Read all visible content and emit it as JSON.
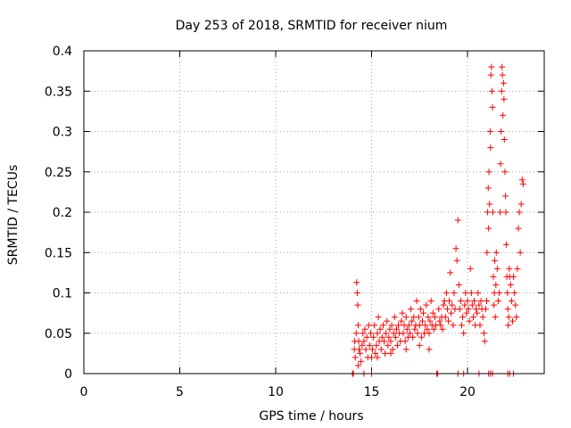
{
  "colors": {
    "series": "#ff0000",
    "grid": "#a0a0a0",
    "axis": "#000000"
  },
  "chart_data": {
    "type": "scatter",
    "title": "Day 253 of 2018, SRMTID for receiver nium",
    "xlabel": "GPS time / hours",
    "ylabel": "SRMTID / TECUs",
    "xlim": [
      0,
      24
    ],
    "ylim": [
      0,
      0.4
    ],
    "xticks": [
      0,
      5,
      10,
      15,
      20
    ],
    "xtick_labels": [
      "0",
      "5",
      "10",
      "15",
      "20"
    ],
    "yticks": [
      0,
      0.05,
      0.1,
      0.15,
      0.2,
      0.25,
      0.3,
      0.35,
      0.4
    ],
    "ytick_labels": [
      "0",
      "0.05",
      "0.1",
      "0.15",
      "0.2",
      "0.25",
      "0.3",
      "0.35",
      "0.4"
    ],
    "grid": true,
    "marker": "+",
    "series": [
      {
        "name": "SRMTID",
        "points": [
          [
            14.0,
            0.0
          ],
          [
            14.05,
            0.0
          ],
          [
            14.1,
            0.03
          ],
          [
            14.12,
            0.04
          ],
          [
            14.15,
            0.02
          ],
          [
            14.2,
            0.05
          ],
          [
            14.22,
            0.113
          ],
          [
            14.25,
            0.1
          ],
          [
            14.28,
            0.085
          ],
          [
            14.3,
            0.06
          ],
          [
            14.33,
            0.04
          ],
          [
            14.35,
            0.03
          ],
          [
            14.4,
            0.025
          ],
          [
            14.45,
            0.015
          ],
          [
            14.5,
            0.035
          ],
          [
            14.55,
            0.05
          ],
          [
            14.6,
            0.04
          ],
          [
            14.65,
            0.055
          ],
          [
            14.7,
            0.03
          ],
          [
            14.75,
            0.045
          ],
          [
            14.8,
            0.02
          ],
          [
            14.85,
            0.06
          ],
          [
            14.9,
            0.035
          ],
          [
            14.95,
            0.05
          ],
          [
            15.0,
            0.02
          ],
          [
            15.0,
            0.0
          ],
          [
            15.05,
            0.03
          ],
          [
            15.1,
            0.045
          ],
          [
            15.15,
            0.06
          ],
          [
            15.2,
            0.025
          ],
          [
            15.25,
            0.035
          ],
          [
            15.3,
            0.05
          ],
          [
            15.35,
            0.07
          ],
          [
            15.4,
            0.04
          ],
          [
            15.45,
            0.055
          ],
          [
            15.5,
            0.03
          ],
          [
            15.55,
            0.045
          ],
          [
            15.6,
            0.06
          ],
          [
            15.65,
            0.04
          ],
          [
            15.7,
            0.025
          ],
          [
            15.75,
            0.05
          ],
          [
            15.8,
            0.065
          ],
          [
            15.85,
            0.035
          ],
          [
            15.9,
            0.045
          ],
          [
            15.95,
            0.055
          ],
          [
            16.0,
            0.04
          ],
          [
            16.05,
            0.06
          ],
          [
            16.1,
            0.03
          ],
          [
            16.15,
            0.05
          ],
          [
            16.2,
            0.07
          ],
          [
            16.25,
            0.045
          ],
          [
            16.3,
            0.055
          ],
          [
            16.35,
            0.035
          ],
          [
            16.4,
            0.06
          ],
          [
            16.45,
            0.05
          ],
          [
            16.5,
            0.04
          ],
          [
            16.55,
            0.065
          ],
          [
            16.6,
            0.075
          ],
          [
            16.65,
            0.05
          ],
          [
            16.7,
            0.06
          ],
          [
            16.75,
            0.04
          ],
          [
            16.8,
            0.07
          ],
          [
            16.85,
            0.055
          ],
          [
            16.9,
            0.045
          ],
          [
            16.95,
            0.06
          ],
          [
            17.0,
            0.05
          ],
          [
            17.05,
            0.08
          ],
          [
            17.1,
            0.065
          ],
          [
            17.15,
            0.045
          ],
          [
            17.2,
            0.07
          ],
          [
            17.25,
            0.055
          ],
          [
            17.3,
            0.06
          ],
          [
            17.35,
            0.09
          ],
          [
            17.4,
            0.05
          ],
          [
            17.45,
            0.07
          ],
          [
            17.5,
            0.06
          ],
          [
            17.55,
            0.08
          ],
          [
            17.6,
            0.045
          ],
          [
            17.65,
            0.065
          ],
          [
            17.7,
            0.075
          ],
          [
            17.75,
            0.05
          ],
          [
            17.8,
            0.06
          ],
          [
            17.85,
            0.085
          ],
          [
            17.9,
            0.055
          ],
          [
            17.95,
            0.07
          ],
          [
            18.0,
            0.05
          ],
          [
            18.05,
            0.065
          ],
          [
            18.1,
            0.09
          ],
          [
            18.15,
            0.06
          ],
          [
            18.2,
            0.075
          ],
          [
            18.25,
            0.055
          ],
          [
            18.3,
            0.07
          ],
          [
            18.35,
            0.06
          ],
          [
            18.4,
            0.0
          ],
          [
            18.45,
            0.0
          ],
          [
            18.5,
            0.08
          ],
          [
            18.55,
            0.065
          ],
          [
            18.6,
            0.06
          ],
          [
            18.65,
            0.07
          ],
          [
            18.7,
            0.055
          ],
          [
            18.75,
            0.085
          ],
          [
            18.8,
            0.09
          ],
          [
            18.85,
            0.07
          ],
          [
            18.9,
            0.1
          ],
          [
            18.95,
            0.08
          ],
          [
            19.0,
            0.065
          ],
          [
            19.05,
            0.09
          ],
          [
            19.1,
            0.125
          ],
          [
            19.15,
            0.075
          ],
          [
            19.2,
            0.085
          ],
          [
            19.25,
            0.06
          ],
          [
            19.3,
            0.1
          ],
          [
            19.35,
            0.08
          ],
          [
            19.4,
            0.155
          ],
          [
            19.45,
            0.14
          ],
          [
            19.5,
            0.19
          ],
          [
            19.55,
            0.11
          ],
          [
            19.6,
            0.08
          ],
          [
            19.65,
            0.09
          ],
          [
            19.7,
            0.06
          ],
          [
            19.75,
            0.07
          ],
          [
            19.8,
            0.05
          ],
          [
            19.85,
            0.085
          ],
          [
            19.9,
            0.1
          ],
          [
            19.95,
            0.075
          ],
          [
            20.0,
            0.09
          ],
          [
            20.05,
            0.08
          ],
          [
            20.1,
            0.065
          ],
          [
            20.15,
            0.13
          ],
          [
            20.2,
            0.1
          ],
          [
            20.25,
            0.085
          ],
          [
            20.3,
            0.07
          ],
          [
            20.35,
            0.09
          ],
          [
            20.4,
            0.06
          ],
          [
            20.45,
            0.08
          ],
          [
            20.5,
            0.075
          ],
          [
            20.55,
            0.1
          ],
          [
            20.6,
            0.085
          ],
          [
            20.65,
            0.06
          ],
          [
            20.7,
            0.09
          ],
          [
            20.75,
            0.08
          ],
          [
            20.8,
            0.07
          ],
          [
            20.85,
            0.05
          ],
          [
            20.9,
            0.04
          ],
          [
            20.95,
            0.08
          ],
          [
            21.0,
            0.09
          ],
          [
            21.02,
            0.15
          ],
          [
            21.05,
            0.2
          ],
          [
            21.08,
            0.23
          ],
          [
            21.1,
            0.18
          ],
          [
            21.12,
            0.25
          ],
          [
            21.15,
            0.21
          ],
          [
            21.18,
            0.3
          ],
          [
            21.2,
            0.28
          ],
          [
            21.22,
            0.37
          ],
          [
            21.25,
            0.38
          ],
          [
            21.28,
            0.35
          ],
          [
            21.3,
            0.33
          ],
          [
            21.32,
            0.2
          ],
          [
            21.35,
            0.12
          ],
          [
            21.38,
            0.085
          ],
          [
            21.4,
            0.1
          ],
          [
            21.42,
            0.14
          ],
          [
            21.45,
            0.07
          ],
          [
            21.48,
            0.11
          ],
          [
            21.5,
            0.15
          ],
          [
            21.55,
            0.13
          ],
          [
            21.6,
            0.09
          ],
          [
            21.65,
            0.1
          ],
          [
            21.7,
            0.2
          ],
          [
            21.72,
            0.26
          ],
          [
            21.75,
            0.3
          ],
          [
            21.78,
            0.35
          ],
          [
            21.8,
            0.38
          ],
          [
            21.82,
            0.37
          ],
          [
            21.85,
            0.32
          ],
          [
            21.88,
            0.36
          ],
          [
            21.9,
            0.34
          ],
          [
            21.92,
            0.29
          ],
          [
            21.95,
            0.25
          ],
          [
            21.98,
            0.22
          ],
          [
            22.0,
            0.2
          ],
          [
            22.02,
            0.16
          ],
          [
            22.05,
            0.12
          ],
          [
            22.08,
            0.1
          ],
          [
            22.1,
            0.08
          ],
          [
            22.12,
            0.06
          ],
          [
            22.15,
            0.07
          ],
          [
            22.18,
            0.13
          ],
          [
            22.2,
            0.12
          ],
          [
            22.25,
            0.11
          ],
          [
            22.3,
            0.09
          ],
          [
            22.35,
            0.065
          ],
          [
            22.4,
            0.12
          ],
          [
            22.45,
            0.1
          ],
          [
            22.5,
            0.085
          ],
          [
            22.55,
            0.07
          ],
          [
            22.6,
            0.13
          ],
          [
            22.65,
            0.18
          ],
          [
            22.7,
            0.2
          ],
          [
            22.75,
            0.15
          ],
          [
            22.8,
            0.21
          ],
          [
            22.85,
            0.24
          ],
          [
            22.9,
            0.235
          ],
          [
            21.1,
            0.0
          ],
          [
            21.2,
            0.0
          ],
          [
            21.3,
            0.0
          ],
          [
            22.1,
            0.0
          ],
          [
            22.2,
            0.0
          ],
          [
            22.4,
            0.0
          ],
          [
            19.5,
            0.0
          ],
          [
            19.8,
            0.0
          ],
          [
            20.6,
            0.0
          ],
          [
            14.3,
            0.01
          ],
          [
            14.6,
            0.0
          ],
          [
            15.3,
            0.02
          ],
          [
            16.0,
            0.025
          ],
          [
            16.8,
            0.03
          ],
          [
            17.5,
            0.035
          ],
          [
            18.0,
            0.03
          ]
        ]
      }
    ]
  }
}
